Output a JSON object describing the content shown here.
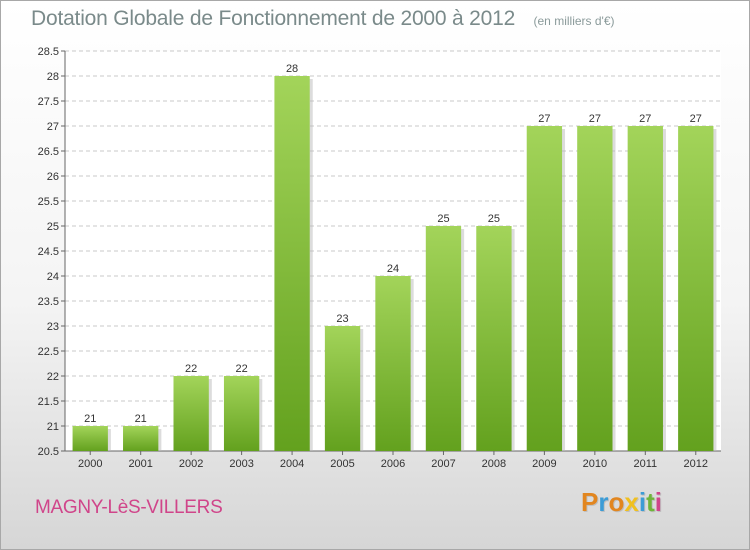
{
  "title": "Dotation Globale de Fonctionnement de 2000 à 2012",
  "subtitle": "(en milliers d'€)",
  "commune": "MAGNY-LèS-VILLERS",
  "logo": {
    "text": "Proxiti",
    "letters": [
      {
        "ch": "P",
        "color": "#e2861f"
      },
      {
        "ch": "r",
        "color": "#3c9cd6"
      },
      {
        "ch": "o",
        "color": "#e2861f"
      },
      {
        "ch": "x",
        "color": "#f0c020"
      },
      {
        "ch": "i",
        "color": "#3c9cd6"
      },
      {
        "ch": "t",
        "color": "#6fb43a"
      },
      {
        "ch": "i",
        "color": "#d0458a"
      }
    ]
  },
  "colors": {
    "bar_light": "#a3d45a",
    "bar_dark": "#63a11e",
    "grid": "#c8c8c8",
    "commune": "#d0458a"
  },
  "chart_data": {
    "type": "bar",
    "title": "Dotation Globale de Fonctionnement de 2000 à 2012",
    "subtitle": "(en milliers d'€)",
    "categories": [
      "2000",
      "2001",
      "2002",
      "2003",
      "2004",
      "2005",
      "2006",
      "2007",
      "2008",
      "2009",
      "2010",
      "2011",
      "2012"
    ],
    "values": [
      21,
      21,
      22,
      22,
      28,
      23,
      24,
      25,
      25,
      27,
      27,
      27,
      27
    ],
    "ylim": [
      20.5,
      28.5
    ],
    "yticks": [
      "20.5",
      "21",
      "21.5",
      "22",
      "22.5",
      "23",
      "23.5",
      "24",
      "24.5",
      "25",
      "25.5",
      "26",
      "26.5",
      "27",
      "27.5",
      "28",
      "28.5"
    ],
    "grid": "horizontal dashed",
    "legend": "none"
  }
}
